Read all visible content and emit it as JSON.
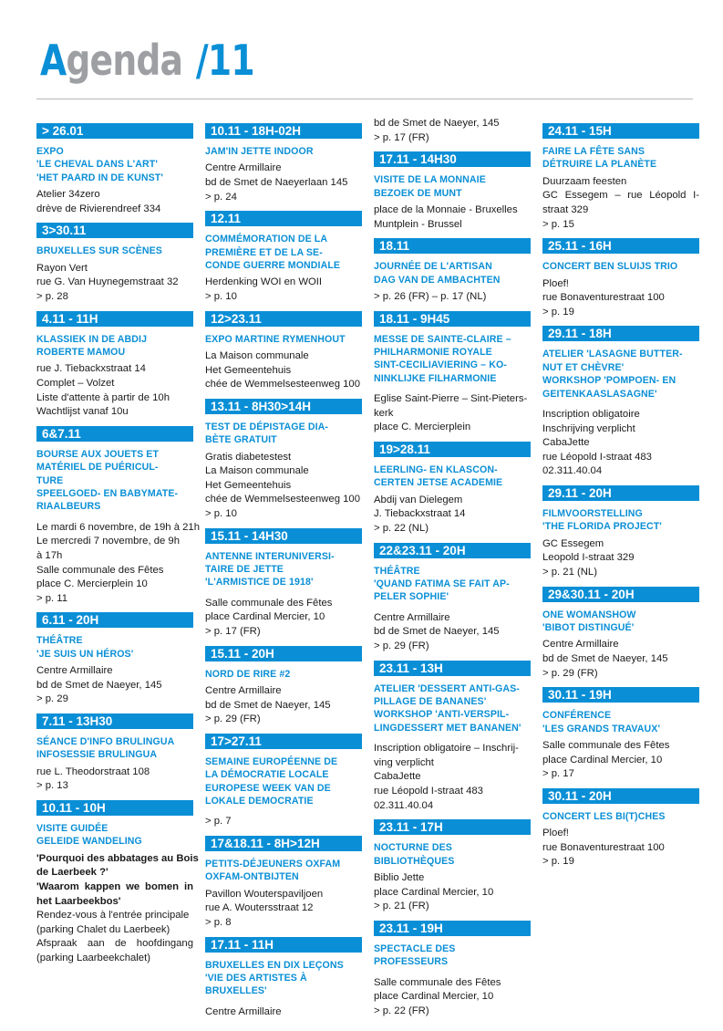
{
  "header": {
    "title_first": "A",
    "title_rest": "genda",
    "title_num": "/11"
  },
  "colors": {
    "accent": "#0a8fd6",
    "title_grey": "#9d9fa2",
    "rule": "#b5b5b5"
  },
  "columns": [
    {
      "continuation": [],
      "events": [
        {
          "date": "> 26.01",
          "title": [
            "EXPO",
            "'LE CHEVAL DANS L'ART'",
            "'HET PAARD IN DE KUNST'"
          ],
          "body": [
            "Atelier 34zero",
            "drève de Rivierendreef 334"
          ]
        },
        {
          "date": "3>30.11",
          "title": [
            "BRUXELLES SUR SCÈNES"
          ],
          "body": [
            "Rayon Vert",
            "rue G. Van Huynegemstraat 32",
            "> p. 28"
          ]
        },
        {
          "date": "4.11 - 11H",
          "title": [
            "KLASSIEK IN DE ABDIJ",
            "ROBERTE MAMOU"
          ],
          "body": [
            "rue J. Tiebackxstraat 14",
            "Complet – Volzet",
            "Liste d'attente à partir de 10h",
            "Wachtlijst vanaf 10u"
          ]
        },
        {
          "date": "6&7.11",
          "title": [
            "BOURSE AUX JOUETS ET",
            "MATÉRIEL DE PUÉRICUL-",
            "TURE",
            "SPEELGOED- EN BABYMATE-",
            "RIAALBEURS"
          ],
          "title_gap": true,
          "body": [
            "Le mardi 6 novembre, de 19h à 21h",
            "Le mercredi 7 novembre, de 9h",
            "à 17h",
            "Salle communale des Fêtes",
            "place C. Mercierplein 10",
            "> p. 11"
          ]
        },
        {
          "date": "6.11 - 20H",
          "title": [
            "THÉÂTRE",
            "'JE SUIS UN HÉROS'"
          ],
          "body": [
            "Centre Armillaire",
            "bd de Smet de Naeyer, 145",
            "> p. 29"
          ]
        },
        {
          "date": "7.11 - 13H30",
          "title": [
            "SÉANCE D'INFO BRULINGUA",
            "INFOSESSIE BRULINGUA"
          ],
          "body": [
            "rue L. Theodorstraat 108",
            "> p. 13"
          ]
        },
        {
          "date": "10.11 - 10H",
          "title": [
            "VISITE GUIDÉE",
            "GELEIDE WANDELING"
          ],
          "body": [
            "'Pourquoi des abbatages au Bois",
            "de Laerbeek ?'",
            "'Waarom kappen we bomen in",
            "het Laarbeekbos'",
            "Rendez-vous à l'entrée principale",
            "(parking Chalet du Laerbeek)",
            "Afspraak aan de hoofdingang",
            "(parking Laarbeekchalet)"
          ],
          "bold_lines": [
            0,
            1,
            2,
            3
          ],
          "justify_lines": [
            0,
            2,
            6
          ]
        }
      ]
    },
    {
      "continuation": [],
      "events": [
        {
          "date": "10.11 - 18H-02H",
          "title": [
            "JAM'IN JETTE INDOOR"
          ],
          "body": [
            "Centre Armillaire",
            "bd de Smet de Naeyerlaan 145",
            "> p. 24"
          ]
        },
        {
          "date": "12.11",
          "title": [
            "COMMÉMORATION DE LA",
            "PREMIÈRE ET DE LA SE-",
            "CONDE GUERRE MONDIALE"
          ],
          "body": [
            "Herdenking WOI en WOII",
            "> p. 10"
          ]
        },
        {
          "date": "12>23.11",
          "title": [
            "EXPO MARTINE RYMENHOUT"
          ],
          "body": [
            "La Maison communale",
            "Het Gemeentehuis",
            "chée de Wemmelsesteenweg 100"
          ]
        },
        {
          "date": "13.11 - 8H30>14H",
          "title": [
            "TEST DE DÉPISTAGE DIA-",
            "BÈTE GRATUIT"
          ],
          "body": [
            "Gratis diabetestest",
            "La Maison communale",
            "Het Gemeentehuis",
            "chée de Wemmelsesteenweg 100",
            "> p. 10"
          ]
        },
        {
          "date": "15.11 - 14H30",
          "title": [
            "ANTENNE INTERUNIVERSI-",
            "TAIRE DE JETTE",
            "'L'ARMISTICE DE 1918'"
          ],
          "title_gap": true,
          "body": [
            "Salle communale des Fêtes",
            "place Cardinal Mercier, 10",
            "> p. 17 (FR)"
          ]
        },
        {
          "date": "15.11 - 20H",
          "title": [
            "NORD DE RIRE #2"
          ],
          "body": [
            "Centre Armillaire",
            "bd de Smet de Naeyer, 145",
            "> p. 29 (FR)"
          ]
        },
        {
          "date": "17>27.11",
          "title": [
            "SEMAINE EUROPÉENNE DE",
            "LA DÉMOCRATIE LOCALE",
            "EUROPESE WEEK VAN DE",
            "LOKALE DEMOCRATIE"
          ],
          "title_gap": true,
          "body": [
            "> p. 7"
          ]
        },
        {
          "date": "17&18.11 - 8H>12H",
          "title": [
            "PETITS-DÉJEUNERS OXFAM",
            "OXFAM-ONTBIJTEN"
          ],
          "body": [
            "Pavillon Wouterspaviljoen",
            "rue A. Woutersstraat 12",
            "> p. 8"
          ]
        },
        {
          "date": "17.11 - 11H",
          "title": [
            "BRUXELLES EN DIX LEÇONS",
            "'VIE DES ARTISTES À",
            "BRUXELLES'"
          ],
          "title_gap": true,
          "body": [
            "Centre Armillaire"
          ]
        }
      ]
    },
    {
      "continuation": [
        "bd de Smet de Naeyer, 145",
        "> p. 17 (FR)"
      ],
      "events": [
        {
          "date": "17.11 - 14H30",
          "title": [
            "VISITE DE LA MONNAIE",
            "BEZOEK DE MUNT"
          ],
          "body": [
            "place de la Monnaie - Bruxelles",
            "Muntplein - Brussel"
          ]
        },
        {
          "date": "18.11",
          "title": [
            "JOURNÉE DE L'ARTISAN",
            "DAG VAN DE AMBACHTEN"
          ],
          "body": [
            "> p. 26 (FR) – p. 17 (NL)"
          ]
        },
        {
          "date": "18.11 - 9H45",
          "title": [
            "MESSE DE SAINTE-CLAIRE –",
            "PHILHARMONIE ROYALE",
            "SINT-CECILIAVIERING – KO-",
            "NINKLIJKE FILHARMONIE"
          ],
          "title_gap": true,
          "body": [
            "Eglise Saint-Pierre – Sint-Pieters-",
            "kerk",
            "place C. Mercierplein"
          ]
        },
        {
          "date": "19>28.11",
          "title": [
            "LEERLING- EN KLASCON-",
            "CERTEN JETSE ACADEMIE"
          ],
          "body": [
            "Abdij van Dielegem",
            "J. Tiebackxstraat 14",
            "> p. 22 (NL)"
          ]
        },
        {
          "date": "22&23.11 - 20H",
          "title": [
            "THÉÂTRE",
            "'QUAND FATIMA SE FAIT AP-",
            "PELER SOPHIE'"
          ],
          "title_gap": true,
          "body": [
            "Centre Armillaire",
            "bd de Smet de Naeyer, 145",
            "> p. 29 (FR)"
          ]
        },
        {
          "date": "23.11 - 13H",
          "title": [
            "ATELIER 'DESSERT ANTI-GAS-",
            "PILLAGE DE BANANES'",
            "WORKSHOP 'ANTI-VERSPIL-",
            "LINGDESSERT MET BANANEN'"
          ],
          "title_gap": true,
          "body": [
            "Inscription obligatoire – Inschrij-",
            "ving verplicht",
            "CabaJette",
            "rue Léopold I-straat 483",
            "02.311.40.04"
          ]
        },
        {
          "date": "23.11 - 17H",
          "title": [
            "NOCTURNE DES",
            "BIBLIOTHÈQUES"
          ],
          "body": [
            "Biblio Jette",
            "place Cardinal Mercier, 10",
            "> p. 21 (FR)"
          ]
        },
        {
          "date": "23.11 - 19H",
          "title": [
            "SPECTACLE DES",
            "PROFESSEURS"
          ],
          "title_gap": true,
          "body": [
            "Salle communale des Fêtes",
            "place Cardinal Mercier, 10",
            "> p. 22 (FR)"
          ]
        }
      ]
    },
    {
      "continuation": [],
      "events": [
        {
          "date": "24.11 - 15H",
          "title": [
            "FAIRE LA FÊTE SANS",
            "DÉTRUIRE LA PLANÈTE"
          ],
          "body": [
            "Duurzaam feesten",
            "GC Essegem – rue Léopold I-",
            "straat 329",
            "> p. 15"
          ],
          "justify_lines": [
            1
          ]
        },
        {
          "date": "25.11 - 16H",
          "title": [
            "CONCERT BEN SLUIJS TRIO"
          ],
          "body": [
            "Ploef!",
            "rue Bonaventurestraat 100",
            "> p. 19"
          ]
        },
        {
          "date": "29.11 - 18H",
          "title": [
            "ATELIER 'LASAGNE BUTTER-",
            "NUT ET CHÈVRE'",
            "WORKSHOP 'POMPOEN- EN",
            "GEITENKAASLASAGNE'"
          ],
          "title_gap": true,
          "body": [
            "Inscription obligatoire",
            "Inschrijving verplicht",
            "CabaJette",
            "rue Léopold I-straat 483",
            "02.311.40.04"
          ]
        },
        {
          "date": "29.11 - 20H",
          "title": [
            "FILMVOORSTELLING",
            "'THE FLORIDA PROJECT'"
          ],
          "body": [
            "GC Essegem",
            "Leopold I-straat 329",
            "> p. 21 (NL)"
          ]
        },
        {
          "date": "29&30.11 - 20H",
          "title": [
            "ONE WOMANSHOW",
            "'BIBOT DISTINGUÉ'"
          ],
          "body": [
            "Centre Armillaire",
            "bd de Smet de Naeyer, 145",
            "> p. 29 (FR)"
          ]
        },
        {
          "date": "30.11 - 19H",
          "title": [
            "CONFÉRENCE",
            "'LES GRANDS TRAVAUX'"
          ],
          "body": [
            "Salle communale des Fêtes",
            "place Cardinal Mercier, 10",
            "> p. 17"
          ]
        },
        {
          "date": "30.11 - 20H",
          "title": [
            "CONCERT LES BI(T)CHES"
          ],
          "body": [
            "Ploef!",
            "rue Bonaventurestraat 100",
            "> p. 19"
          ]
        }
      ]
    }
  ]
}
